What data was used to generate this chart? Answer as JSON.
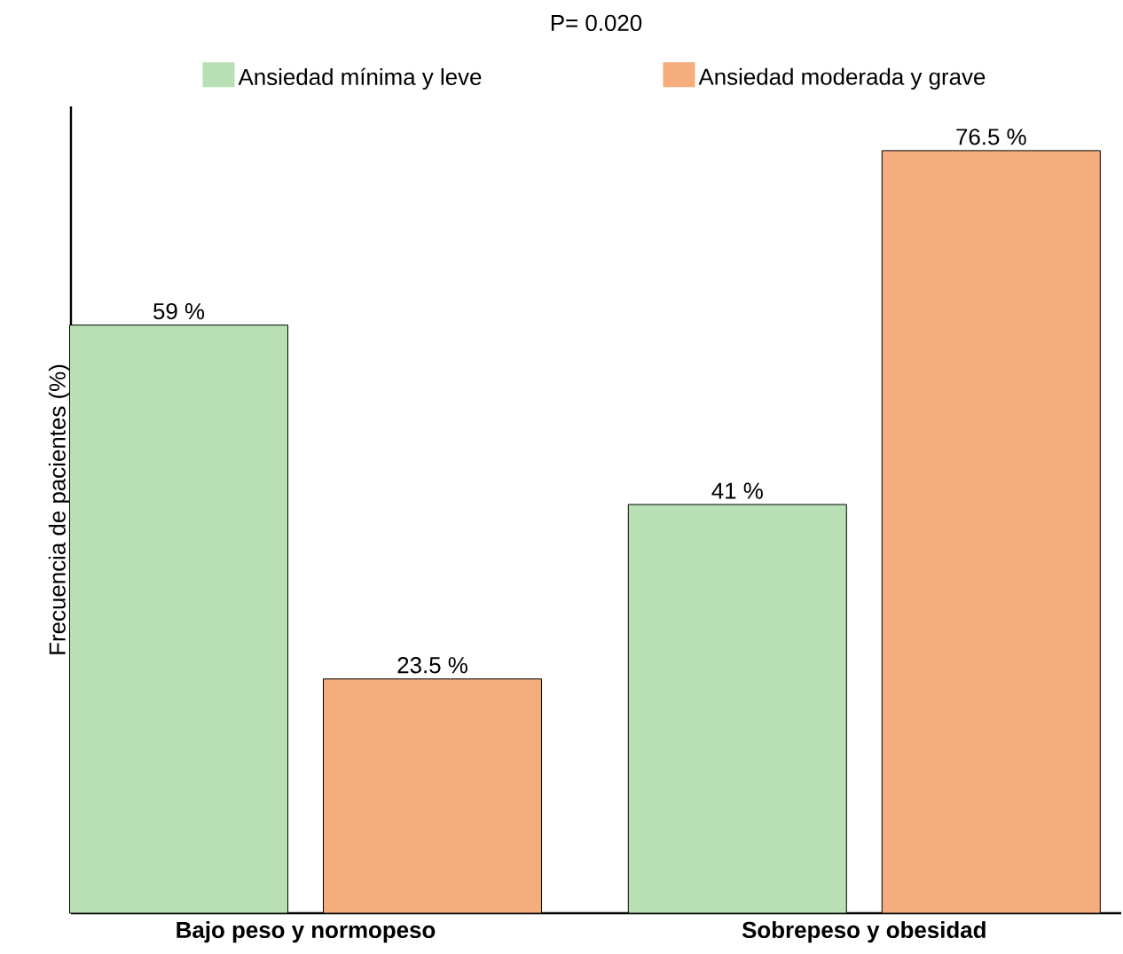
{
  "chart_data": {
    "type": "bar",
    "title": "P= 0.020",
    "ylabel": "Frecuencia de pacientes (%)",
    "categories": [
      "Bajo peso y normopeso",
      "Sobrepeso y obesidad"
    ],
    "series": [
      {
        "name": "Ansiedad mínima y leve",
        "color": "#b9dfb5",
        "values": [
          59,
          41
        ],
        "value_labels": [
          "59 %",
          "41 %"
        ]
      },
      {
        "name": "Ansiedad moderada y grave",
        "color": "#f5ad7e",
        "values": [
          23.5,
          76.5
        ],
        "value_labels": [
          "23.5 %",
          "76.5 %"
        ]
      }
    ],
    "legend": "top"
  }
}
